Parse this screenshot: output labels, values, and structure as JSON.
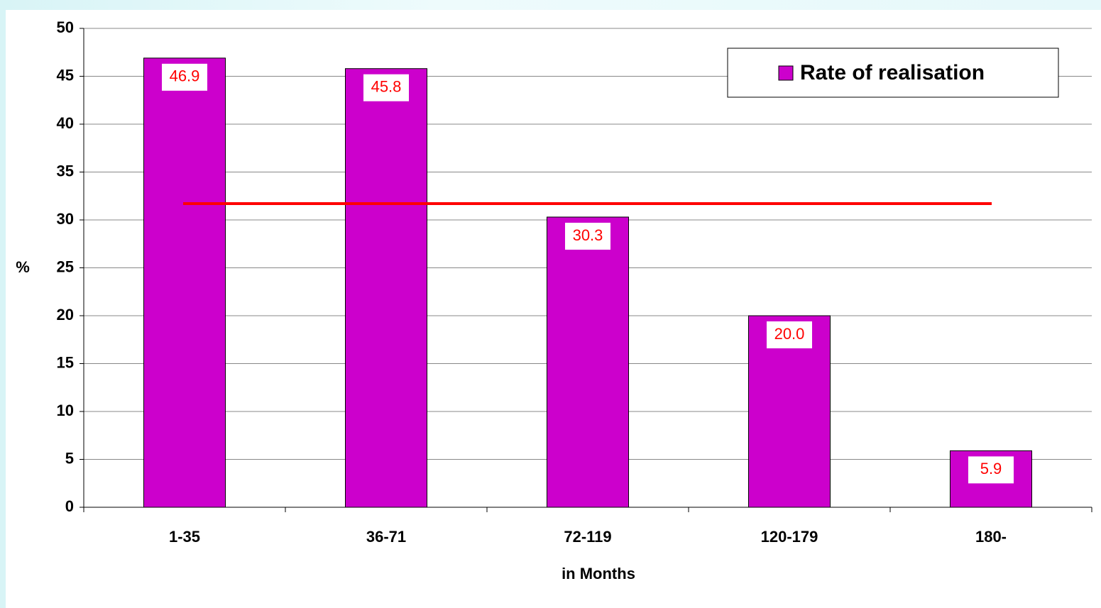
{
  "chart_data": {
    "type": "bar",
    "x_label": "in Months",
    "y_label": "%",
    "categories": [
      "1-35",
      "36-71",
      "72-119",
      "120-179",
      "180-"
    ],
    "series": [
      {
        "name": "Rate of realisation",
        "color": "#cc00cc",
        "values": [
          46.9,
          45.8,
          30.3,
          20.0,
          5.9
        ],
        "value_labels": [
          "46.9",
          "45.8",
          "30.3",
          "20.0",
          "5.9"
        ]
      }
    ],
    "reference_line": {
      "value": 31.7,
      "color": "#ff0000"
    },
    "ylim": [
      0,
      50
    ],
    "yticks": [
      0,
      5,
      10,
      15,
      20,
      25,
      30,
      35,
      40,
      45,
      50
    ],
    "grid": true,
    "legend": "top-right"
  }
}
